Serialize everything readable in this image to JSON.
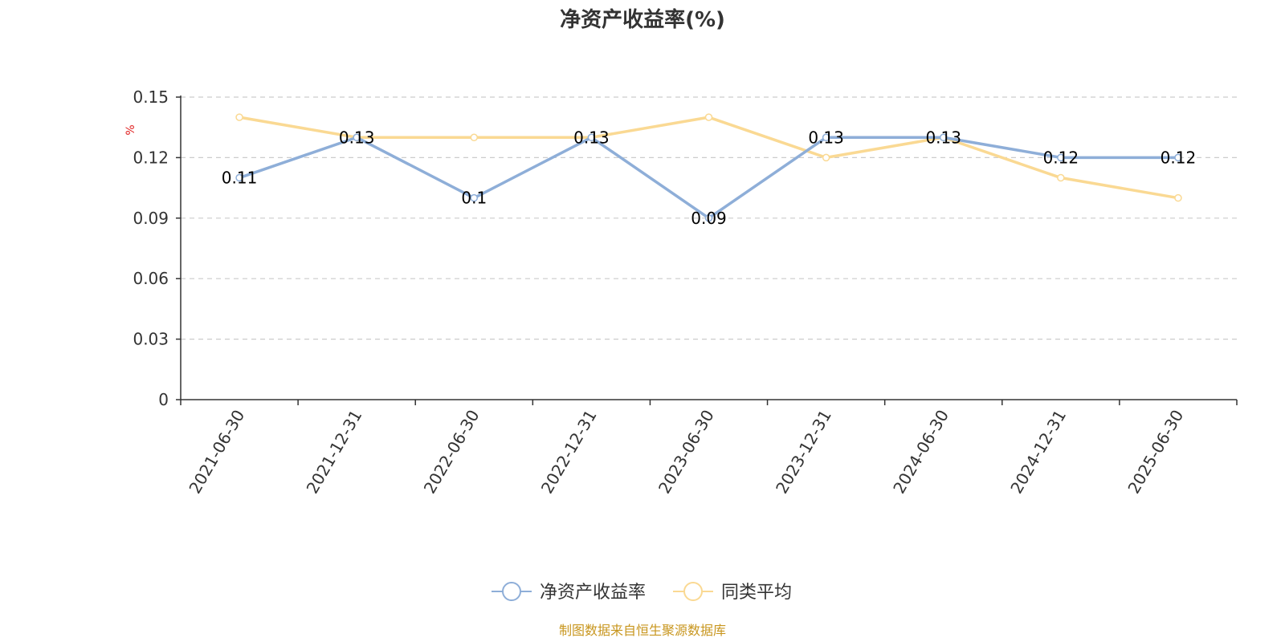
{
  "chart_data": {
    "type": "line",
    "title": "净资产收益率(%)",
    "ylabel": "%",
    "categories": [
      "2021-06-30",
      "2021-12-31",
      "2022-06-30",
      "2022-12-31",
      "2023-06-30",
      "2023-12-31",
      "2024-06-30",
      "2024-12-31",
      "2025-06-30"
    ],
    "yticks": [
      "0",
      "0.03",
      "0.06",
      "0.09",
      "0.12",
      "0.15"
    ],
    "ylim": [
      0,
      0.15
    ],
    "grid": true,
    "legend_position": "bottom-center",
    "series": [
      {
        "name": "净资产收益率",
        "color": "#8eaed8",
        "values": [
          0.11,
          0.13,
          0.1,
          0.13,
          0.09,
          0.13,
          0.13,
          0.12,
          0.12
        ],
        "labels": [
          "0.11",
          "0.13",
          "0.1",
          "0.13",
          "0.09",
          "0.13",
          "0.13",
          "0.12",
          "0.12"
        ]
      },
      {
        "name": "同类平均",
        "color": "#fad993",
        "values": [
          0.14,
          0.13,
          0.13,
          0.13,
          0.14,
          0.12,
          0.13,
          0.11,
          0.1
        ]
      }
    ]
  },
  "colors": {
    "unit_label": "#e02020",
    "source_text": "#c8961e",
    "axis": "#333333",
    "grid": "#cccccc"
  },
  "source": "制图数据来自恒生聚源数据库"
}
